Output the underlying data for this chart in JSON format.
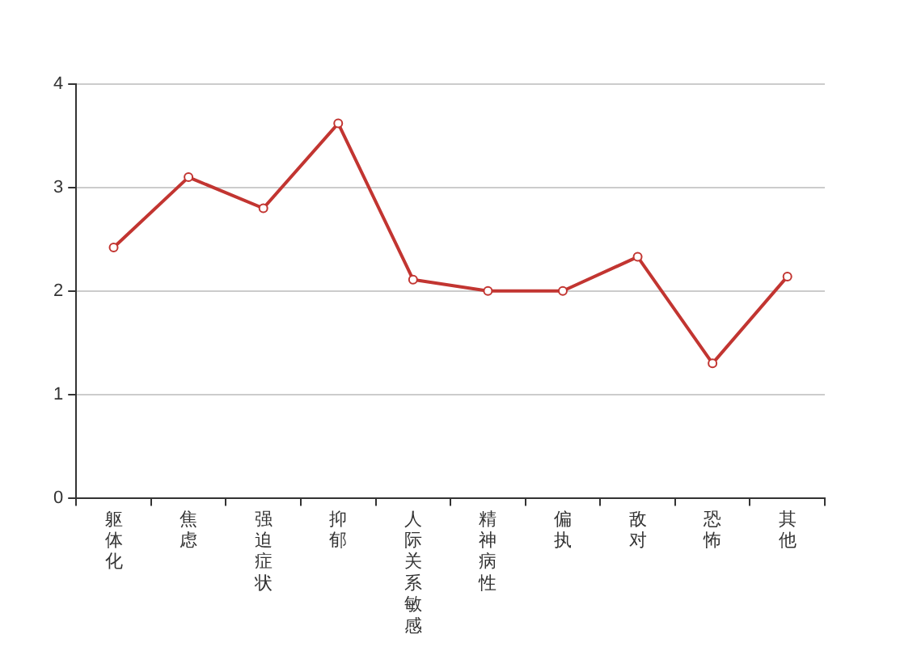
{
  "chart_data": {
    "type": "line",
    "categories": [
      "躯体化",
      "焦虑",
      "强迫症状",
      "抑郁",
      "人际关系敏感",
      "精神病性",
      "偏执",
      "敌对",
      "恐怖",
      "其他"
    ],
    "series": [
      {
        "color": "#c23531",
        "values": [
          2.42,
          3.1,
          2.8,
          3.62,
          2.11,
          2.0,
          2.0,
          2.33,
          1.3,
          2.14
        ]
      }
    ],
    "ylim": [
      0,
      4
    ],
    "yticks": [
      0,
      1,
      2,
      3,
      4
    ],
    "grid": "y",
    "marker": "circle",
    "line_style": "solid",
    "legend": false
  }
}
